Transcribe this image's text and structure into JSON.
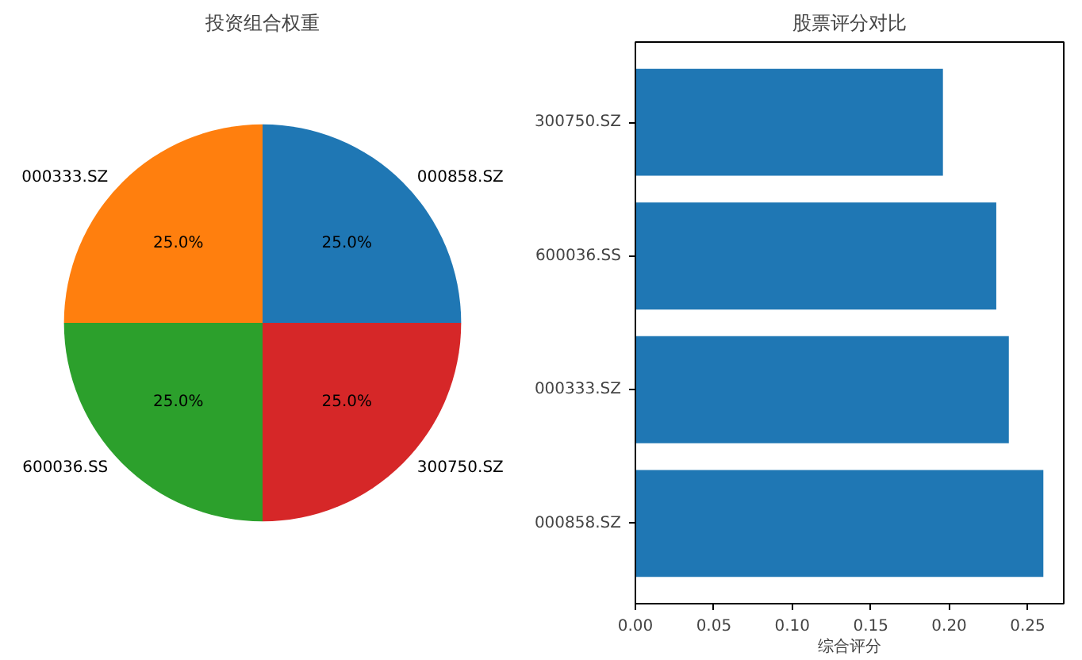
{
  "chart_data": [
    {
      "type": "pie",
      "title": "投资组合权重",
      "categories": [
        "000858.SZ",
        "000333.SZ",
        "600036.SS",
        "300750.SZ"
      ],
      "values": [
        25,
        25,
        25,
        25
      ],
      "colors": [
        "#1f77b4",
        "#ff7f0e",
        "#2ca02c",
        "#d62728"
      ],
      "value_labels": [
        "25.0%",
        "25.0%",
        "25.0%",
        "25.0%"
      ]
    },
    {
      "type": "bar",
      "orientation": "horizontal",
      "title": "股票评分对比",
      "xlabel": "综合评分",
      "categories": [
        "300750.SZ",
        "600036.SS",
        "000333.SZ",
        "000858.SZ"
      ],
      "values": [
        0.196,
        0.23,
        0.238,
        0.26
      ],
      "color": "#1f77b4",
      "xlim": [
        0,
        0.273
      ],
      "xticks": [
        {
          "value": 0,
          "label": "0.00"
        },
        {
          "value": 0.05,
          "label": "0.05"
        },
        {
          "value": 0.1,
          "label": "0.10"
        },
        {
          "value": 0.15,
          "label": "0.15"
        },
        {
          "value": 0.2,
          "label": "0.20"
        },
        {
          "value": 0.25,
          "label": "0.25"
        }
      ]
    }
  ]
}
